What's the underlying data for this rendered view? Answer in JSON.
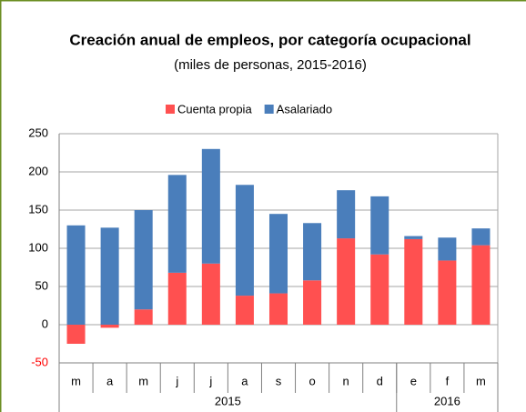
{
  "chart_data": {
    "type": "stacked_bar",
    "title": "Creación anual de empleos, por categoría ocupacional",
    "subtitle": "(miles de personas, 2015-2016)",
    "categories": [
      "m",
      "a",
      "m",
      "j",
      "j",
      "a",
      "s",
      "o",
      "n",
      "d",
      "e",
      "f",
      "m"
    ],
    "x_groups": [
      {
        "label": "2015",
        "span": 10
      },
      {
        "label": "2016",
        "span": 3
      }
    ],
    "series": [
      {
        "name": "Cuenta propia",
        "color": "#ff5050",
        "values": [
          -25,
          -4,
          20,
          68,
          80,
          38,
          41,
          58,
          113,
          92,
          112,
          84,
          104
        ]
      },
      {
        "name": "Asalariado",
        "color": "#4a7ebb",
        "values": [
          130,
          127,
          130,
          128,
          150,
          145,
          104,
          75,
          63,
          76,
          4,
          30,
          22
        ]
      }
    ],
    "ylim": [
      -50,
      250
    ],
    "yticks": [
      -50,
      0,
      50,
      100,
      150,
      200,
      250
    ],
    "grid": true,
    "legend": "top"
  }
}
